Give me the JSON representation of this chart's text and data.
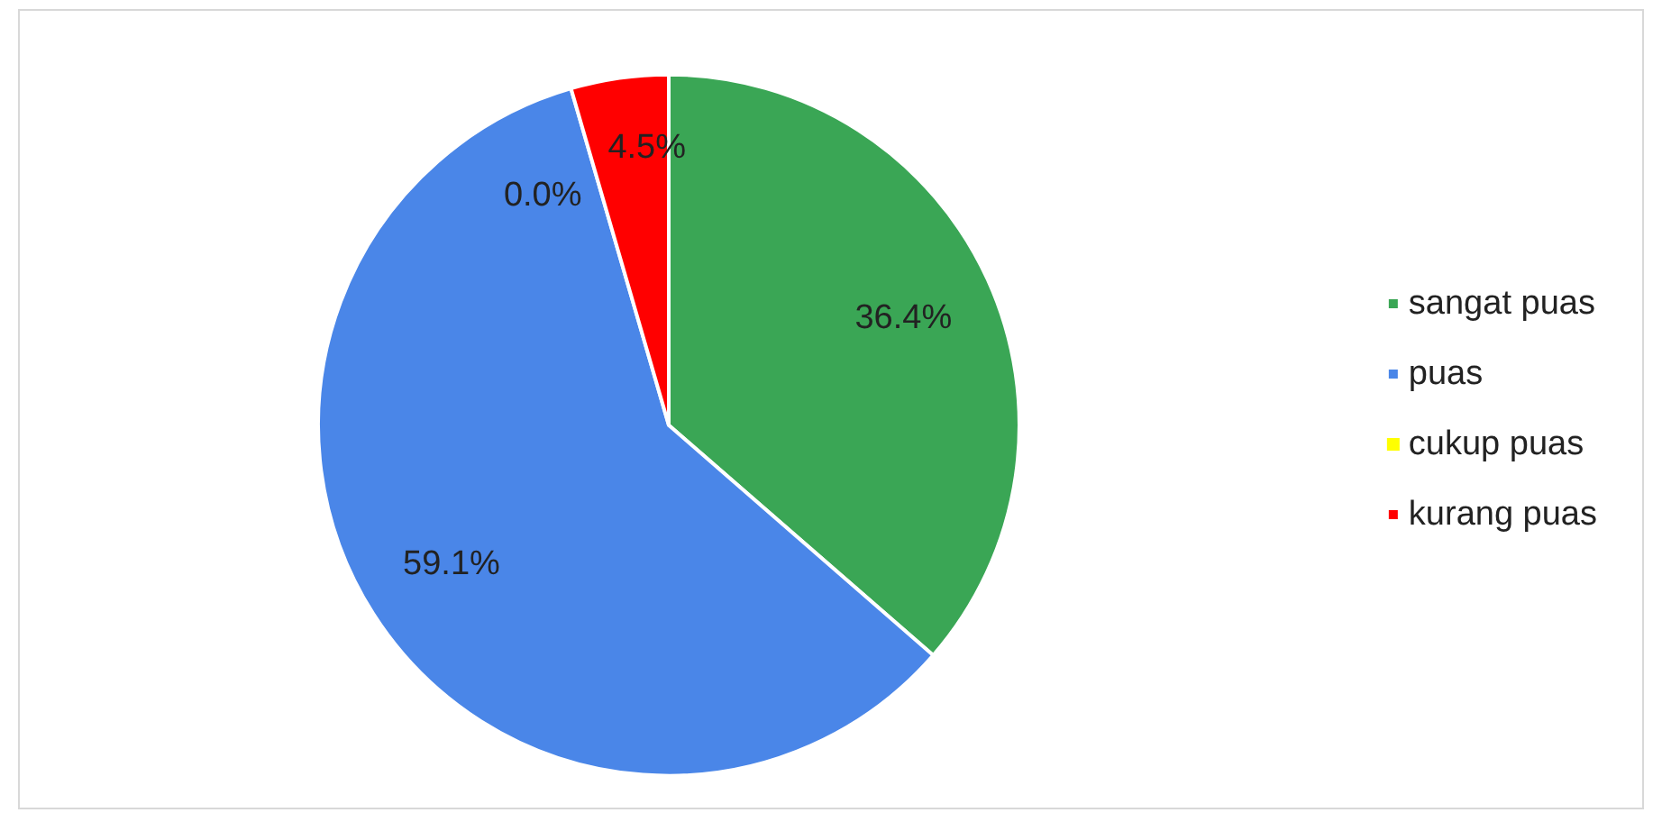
{
  "chart_data": {
    "type": "pie",
    "categories": [
      "sangat puas",
      "puas",
      "cukup puas",
      "kurang puas"
    ],
    "values": [
      36.4,
      59.1,
      0.0,
      4.5
    ],
    "colors": [
      "#3aa655",
      "#4a86e8",
      "#ffff00",
      "#ff0000"
    ],
    "value_labels": [
      "36.4%",
      "59.1%",
      "0.0%",
      "4.5%"
    ],
    "legend": "right"
  }
}
